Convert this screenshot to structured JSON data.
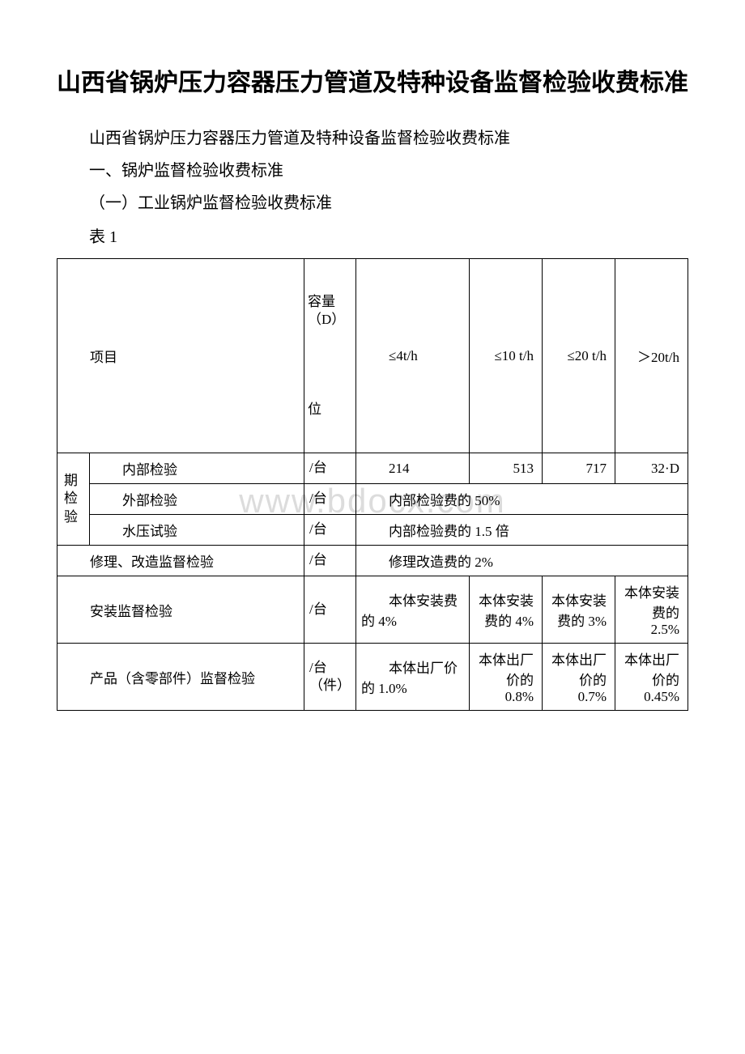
{
  "title": "山西省锅炉压力容器压力管道及特种设备监督检验收费标准",
  "subtitle": "山西省锅炉压力容器压力管道及特种设备监督检验收费标准",
  "section1": "一、锅炉监督检验收费标准",
  "section1_1": "（一）工业锅炉监督检验收费标准",
  "table_label": "表 1",
  "watermark": "www.bdocx.com",
  "header": {
    "item_label": "项目",
    "capacity_label": "容量（D）",
    "blank_line": "",
    "unit_label": "位",
    "col1": "≤4t/h",
    "col2": "≤10 t/h",
    "col3": "≤20 t/h",
    "col4": "＞20t/h"
  },
  "rows": {
    "periodic_label": "期检验",
    "internal": {
      "name": "内部检验",
      "unit": "/台",
      "v1": "214",
      "v2": "513",
      "v3": "717",
      "v4": "32·D"
    },
    "external": {
      "name": "外部检验",
      "unit": "/台",
      "merged": "内部检验费的 50%"
    },
    "pressure": {
      "name": "水压试验",
      "unit": "/台",
      "merged": "内部检验费的 1.5 倍"
    },
    "repair": {
      "name": "修理、改造监督检验",
      "unit": "/台",
      "merged": "修理改造费的 2%"
    },
    "install": {
      "name": "安装监督检验",
      "unit": "/台",
      "v1": "本体安装费的 4%",
      "v2": "本体安装费的 4%",
      "v3": "本体安装费的 3%",
      "v4": "本体安装费的 2.5%"
    },
    "product": {
      "name": "产品（含零部件）监督检验",
      "unit": "/台（件）",
      "v1": "本体出厂价的 1.0%",
      "v2": "本体出厂价的 0.8%",
      "v3": "本体出厂价的 0.7%",
      "v4": "本体出厂价的 0.45%"
    }
  },
  "colors": {
    "text": "#000000",
    "background": "#ffffff",
    "border": "#000000",
    "watermark": "#dcdcdc"
  }
}
